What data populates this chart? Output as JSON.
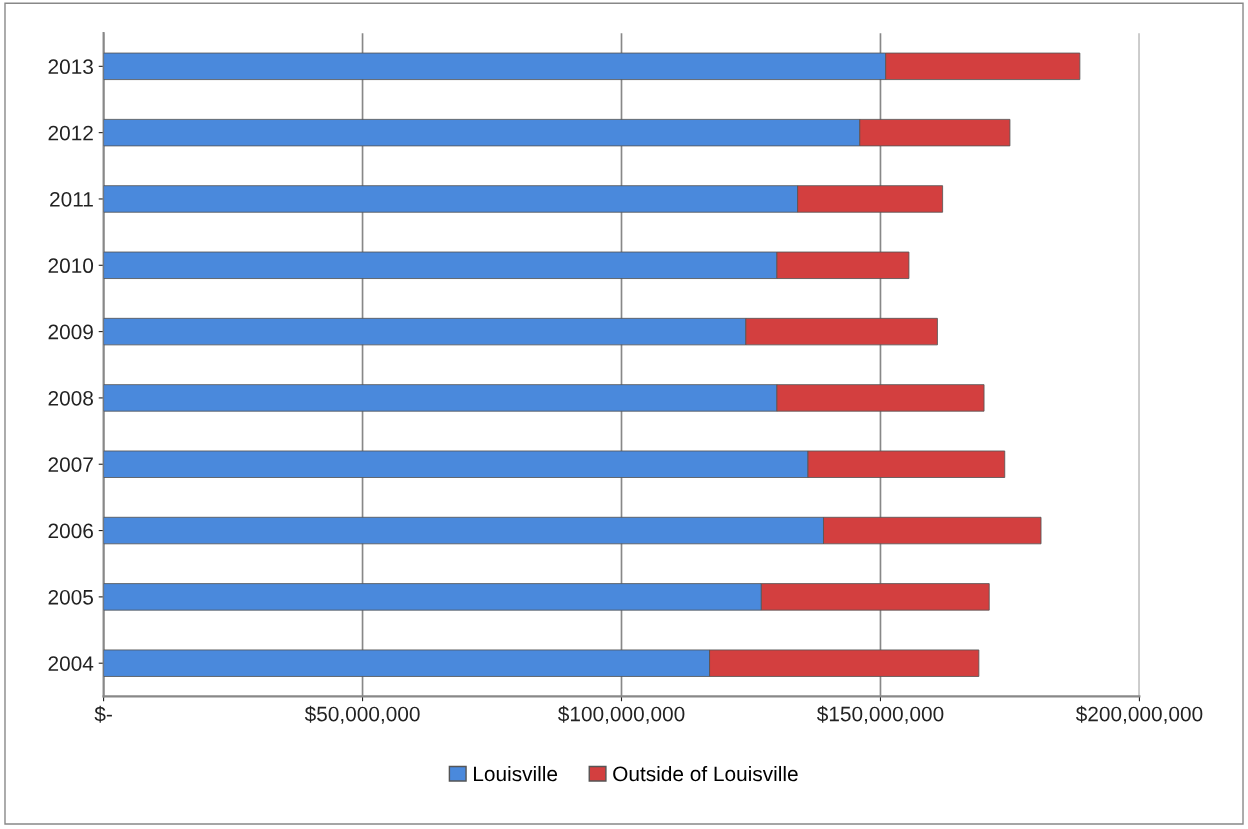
{
  "chart_data": {
    "type": "bar",
    "orientation": "horizontal",
    "stacked": true,
    "categories": [
      "2013",
      "2012",
      "2011",
      "2010",
      "2009",
      "2008",
      "2007",
      "2006",
      "2005",
      "2004"
    ],
    "series": [
      {
        "name": "Louisville",
        "color": "#4a89dc",
        "values": [
          151000000,
          146000000,
          134000000,
          130000000,
          124000000,
          130000000,
          136000000,
          139000000,
          127000000,
          117000000
        ]
      },
      {
        "name": "Outside of Louisville",
        "color": "#d33f3f",
        "values": [
          37500000,
          29000000,
          28000000,
          25500000,
          37000000,
          40000000,
          38000000,
          42000000,
          44000000,
          52000000
        ]
      }
    ],
    "xlim": [
      0,
      200000000
    ],
    "xticks": [
      {
        "value": 0,
        "label": "$-"
      },
      {
        "value": 50000000,
        "label": "$50,000,000"
      },
      {
        "value": 100000000,
        "label": "$100,000,000"
      },
      {
        "value": 150000000,
        "label": "$150,000,000"
      },
      {
        "value": 200000000,
        "label": "$200,000,000"
      }
    ],
    "grid": "x",
    "legend": "bottom"
  }
}
